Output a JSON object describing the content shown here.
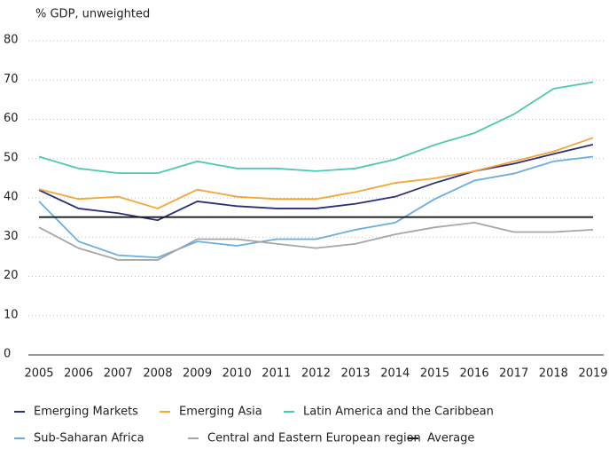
{
  "chart_data": {
    "type": "line",
    "y_label": "% GDP, unweighted",
    "categories": [
      "2005",
      "2006",
      "2007",
      "2008",
      "2009",
      "2010",
      "2011",
      "2012",
      "2013",
      "2014",
      "2015",
      "2016",
      "2017",
      "2018",
      "2019"
    ],
    "ylim": [
      0,
      80
    ],
    "yticks": [
      0,
      10,
      20,
      30,
      40,
      50,
      60,
      70,
      80
    ],
    "grid": true,
    "series": [
      {
        "name": "Emerging Markets",
        "color": "#2b2f7a",
        "values": [
          42.0,
          37.3,
          36.1,
          34.3,
          39.1,
          37.9,
          37.3,
          37.3,
          38.5,
          40.3,
          43.8,
          46.8,
          48.7,
          51.2,
          53.6
        ]
      },
      {
        "name": "Emerging Asia",
        "color": "#f5a43a",
        "values": [
          42.2,
          39.7,
          40.3,
          37.3,
          42.1,
          40.3,
          39.7,
          39.7,
          41.5,
          43.8,
          45.0,
          46.8,
          49.3,
          51.8,
          55.3
        ]
      },
      {
        "name": "Latin America and the Caribbean",
        "color": "#4fc9b0",
        "values": [
          50.5,
          47.5,
          46.3,
          46.3,
          49.3,
          47.5,
          47.5,
          46.8,
          47.5,
          49.8,
          53.5,
          56.5,
          61.3,
          67.8,
          69.5
        ]
      },
      {
        "name": "Sub-Saharan Africa",
        "color": "#6aaee0",
        "values": [
          39.1,
          28.9,
          25.4,
          24.8,
          28.9,
          27.8,
          29.5,
          29.5,
          31.9,
          33.7,
          39.7,
          44.4,
          46.2,
          49.3,
          50.5
        ]
      },
      {
        "name": "Central and Eastern European region",
        "color": "#a6a6a6",
        "values": [
          32.5,
          27.2,
          24.2,
          24.2,
          29.5,
          29.5,
          28.3,
          27.2,
          28.3,
          30.7,
          32.5,
          33.7,
          31.3,
          31.3,
          31.9
        ]
      },
      {
        "name": "Average",
        "color": "#1a1a1a",
        "values": [
          35.1,
          35.1,
          35.1,
          35.1,
          35.1,
          35.1,
          35.1,
          35.1,
          35.1,
          35.1,
          35.1,
          35.1,
          35.1,
          35.1,
          35.1
        ]
      }
    ]
  }
}
